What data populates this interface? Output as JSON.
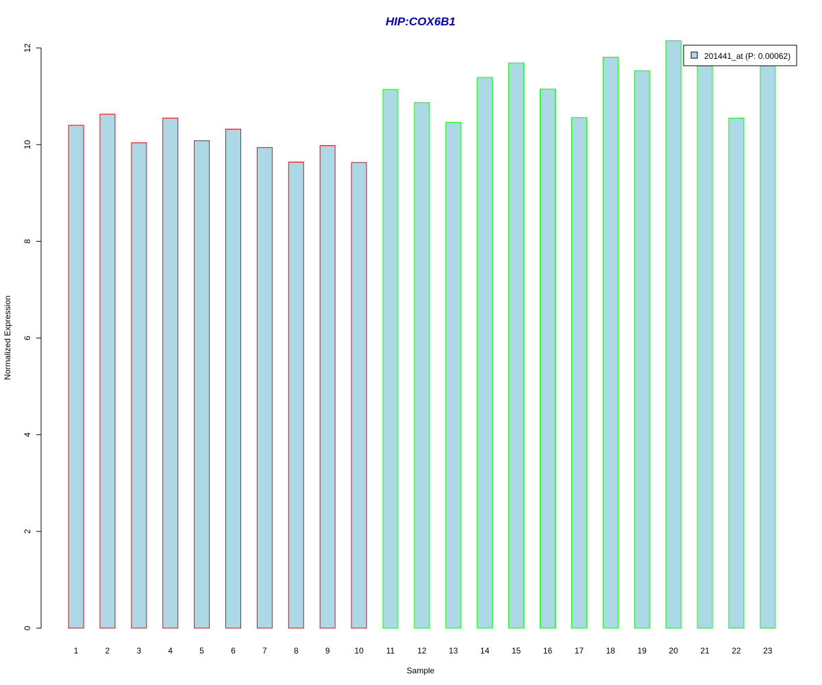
{
  "chart_data": {
    "type": "bar",
    "title": "HIP:COX6B1",
    "xlabel": "Sample",
    "ylabel": "Normalized Expression",
    "categories": [
      "1",
      "2",
      "3",
      "4",
      "5",
      "6",
      "7",
      "8",
      "9",
      "10",
      "11",
      "12",
      "13",
      "14",
      "15",
      "16",
      "17",
      "18",
      "19",
      "20",
      "21",
      "22",
      "23"
    ],
    "series": [
      {
        "name": "201441_at (P: 0.00062)",
        "values": [
          10.4,
          10.63,
          10.04,
          10.55,
          10.08,
          10.32,
          9.94,
          9.64,
          9.98,
          9.63,
          11.14,
          10.87,
          10.46,
          11.39,
          11.69,
          11.15,
          10.56,
          11.81,
          11.53,
          12.15,
          11.65,
          10.55,
          11.65
        ]
      }
    ],
    "bar_fill": "#add8e6",
    "group_colors": [
      "#ff0000",
      "#00ff00"
    ],
    "group_sizes": [
      10,
      13
    ],
    "ylim": [
      0,
      12
    ],
    "yticks": [
      "0",
      "2",
      "4",
      "6",
      "8",
      "10",
      "12"
    ],
    "grid": false,
    "legend_position": "top-right",
    "title_color": "#0000cd"
  }
}
